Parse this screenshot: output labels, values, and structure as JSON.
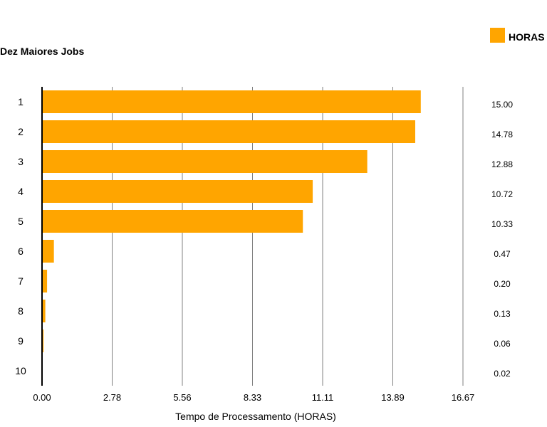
{
  "chart_data": {
    "type": "bar",
    "orientation": "horizontal",
    "title": "Dez Maiores Jobs",
    "xlabel": "Tempo de Processamento (HORAS)",
    "ylabel": "",
    "categories": [
      "1",
      "2",
      "3",
      "4",
      "5",
      "6",
      "7",
      "8",
      "9",
      "10"
    ],
    "series": [
      {
        "name": "HORAS",
        "values": [
          15.0,
          14.78,
          12.88,
          10.72,
          10.33,
          0.47,
          0.2,
          0.13,
          0.06,
          0.02
        ]
      }
    ],
    "value_labels": [
      "15.00",
      "14.78",
      "12.88",
      "10.72",
      "10.33",
      "0.47",
      "0.20",
      "0.13",
      "0.06",
      "0.02"
    ],
    "xlim": [
      0,
      16.67
    ],
    "xticks": [
      "0.00",
      "2.78",
      "5.56",
      "8.33",
      "11.11",
      "13.89",
      "16.67"
    ],
    "grid": true,
    "legend": "top-right",
    "colors": {
      "bar": "#FFA500",
      "axis": "#000000",
      "grid": "#808080",
      "text": "#000000"
    }
  }
}
